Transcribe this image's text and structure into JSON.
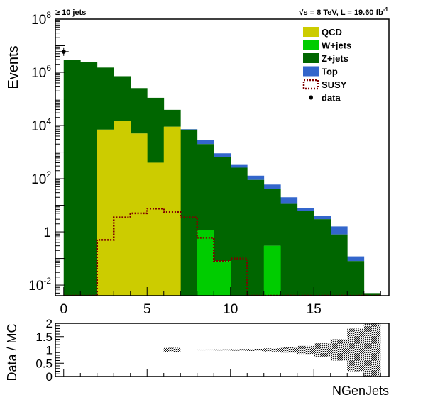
{
  "chart_data": [
    {
      "type": "stacked-histogram",
      "annotation_left": "≥ 10 jets",
      "annotation_right_base": "√s = 8 TeV, L = 19.60 fb",
      "annotation_right_sup": "-1",
      "ylabel_base": "Events",
      "y_scale": "log",
      "ylim": [
        0.004,
        100000000
      ],
      "xlim": [
        -0.5,
        19.5
      ],
      "x_ticks": [
        0,
        5,
        10,
        15
      ],
      "x_tick_labels": [
        "0",
        "5",
        "10",
        "15"
      ],
      "y_tick_labels": [
        {
          "value": 100000000,
          "base": "10",
          "exp": "8"
        },
        {
          "value": 1000000,
          "base": "10",
          "exp": "6"
        },
        {
          "value": 10000,
          "base": "10",
          "exp": "4"
        },
        {
          "value": 100,
          "base": "10",
          "exp": "2"
        },
        {
          "value": 1,
          "base": "1",
          "exp": ""
        },
        {
          "value": 0.01,
          "base": "10",
          "exp": "-2"
        }
      ],
      "bin_edges": [
        0,
        1,
        2,
        3,
        4,
        5,
        6,
        7,
        8,
        9,
        10,
        11,
        12,
        13,
        14,
        15,
        16,
        17,
        18,
        19
      ],
      "legend_position": "top-right",
      "series": [
        {
          "name": "QCD",
          "color": "#cccc00",
          "values": [
            0,
            0,
            7000,
            15000,
            5000,
            400,
            9000,
            0,
            0,
            0,
            0,
            0,
            0,
            0,
            0,
            0,
            0,
            0,
            0
          ]
        },
        {
          "name": "W+jets",
          "color": "#00cc00",
          "values": [
            0,
            0,
            0,
            0,
            0,
            0,
            0,
            0,
            1.2,
            0.08,
            0,
            0,
            0.3,
            0,
            0,
            0,
            0,
            0,
            0
          ]
        },
        {
          "name": "Z+jets",
          "color": "#006600",
          "values": [
            3000000,
            2500000,
            1500000,
            700000,
            250000,
            110000,
            30000,
            7000,
            2000,
            650,
            260,
            90,
            40,
            12,
            6,
            3,
            0.8,
            0.08,
            0.005
          ]
        },
        {
          "name": "Top",
          "color": "#3366cc",
          "values": [
            0,
            0,
            0,
            0,
            0,
            0,
            0,
            300,
            800,
            250,
            90,
            40,
            20,
            8,
            2,
            1,
            0.8,
            0.04,
            0
          ]
        }
      ],
      "signal": {
        "name": "SUSY",
        "color": "#800000",
        "values": [
          0,
          0,
          0.5,
          3.5,
          5,
          7.5,
          5.5,
          3.5,
          0.6,
          0.08,
          0.1,
          0,
          0,
          0,
          0,
          0,
          0,
          0,
          0
        ]
      },
      "data": {
        "name": "data",
        "x": [
          0
        ],
        "y": [
          6000000
        ]
      }
    },
    {
      "type": "ratio",
      "ylabel": "Data / MC",
      "xlabel": "NGenJets",
      "ylim": [
        0,
        2
      ],
      "y_ticks": [
        0,
        0.5,
        1,
        1.5,
        2
      ],
      "y_tick_labels": [
        "0",
        "0.5",
        "1",
        "1.5",
        "2"
      ],
      "reference_line": 1,
      "uncertainty": [
        0.002,
        0.002,
        0.003,
        0.004,
        0.005,
        0.006,
        0.08,
        0.01,
        0.015,
        0.02,
        0.03,
        0.04,
        0.06,
        0.1,
        0.15,
        0.25,
        0.4,
        0.8,
        2.5
      ]
    }
  ]
}
